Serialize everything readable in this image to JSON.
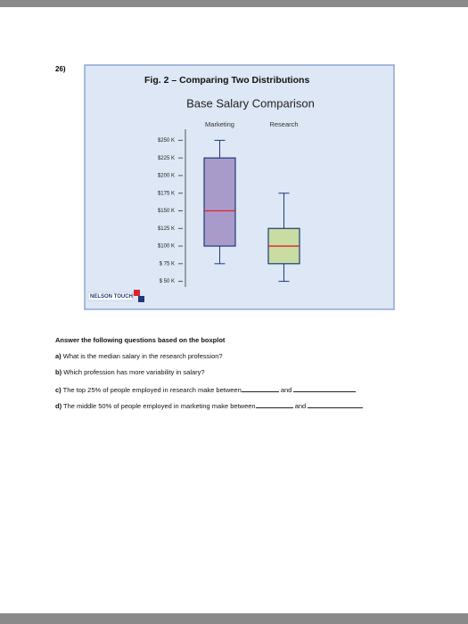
{
  "question_number": "26)",
  "figure_label": "Fig. 2 – Comparing Two Distributions",
  "logo_text": "NELSON TOUCH",
  "chart_data": {
    "type": "boxplot",
    "title": "Base Salary Comparison",
    "categories": [
      "Marketing",
      "Research"
    ],
    "min": [
      75000,
      50000
    ],
    "q1": [
      100000,
      75000
    ],
    "median": [
      150000,
      100000
    ],
    "q3": [
      225000,
      125000
    ],
    "max": [
      250000,
      175000
    ],
    "colors": [
      "#a99bc9",
      "#c9dca2"
    ],
    "median_color": "#e0202a",
    "box_edge_color": "#1f3a7a",
    "ylim": [
      40000,
      260000
    ],
    "yticks": [
      {
        "value": 250000,
        "label": "$250 K"
      },
      {
        "value": 225000,
        "label": "$225 K"
      },
      {
        "value": 200000,
        "label": "$200 K"
      },
      {
        "value": 175000,
        "label": "$175 K"
      },
      {
        "value": 150000,
        "label": "$150 K"
      },
      {
        "value": 125000,
        "label": "$125 K"
      },
      {
        "value": 100000,
        "label": "$100 K"
      },
      {
        "value": 75000,
        "label": "$ 75 K"
      },
      {
        "value": 50000,
        "label": "$ 50 K"
      }
    ]
  },
  "questions": {
    "heading": "Answer the following questions based on the boxplot",
    "items": [
      {
        "label": "a)",
        "text": "What is the median salary in the research profession?"
      },
      {
        "label": "b)",
        "text": "Which profession has more variability in salary?"
      },
      {
        "label": "c)",
        "text": "The top 25% of people employed in research make between",
        "conjunction": "and"
      },
      {
        "label": "d)",
        "text": "The middle 50% of people employed in marketing make between",
        "conjunction": "and"
      }
    ]
  }
}
